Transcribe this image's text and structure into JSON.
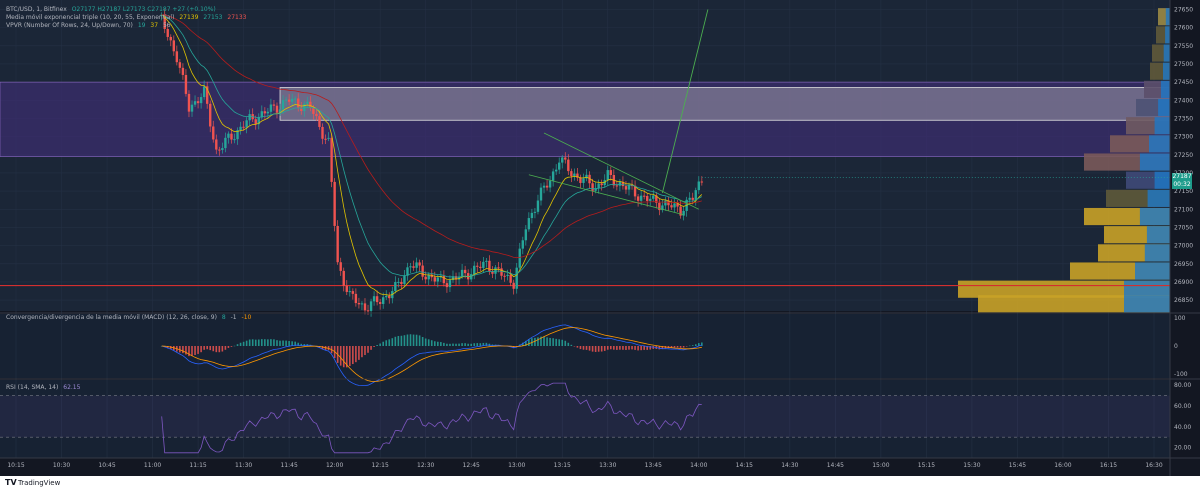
{
  "header": {
    "symbol_line": "BTC/USD, 1, Bitfinex",
    "ohlc": "O27177 H27187 L27173 C27187 +27 (+0.10%)",
    "ema_label": "Media móvil exponencial triple (10, 20, 55, Exponential)",
    "ema_values": [
      "27139",
      "27153",
      "27133"
    ],
    "vpvr_label": "VPVR (Number Of Rows, 24, Up/Down, 70)",
    "vpvr_values": [
      "19",
      "37",
      "56"
    ]
  },
  "price_tag": {
    "price": "27187",
    "countdown": "00:32"
  },
  "macd_label": "Convergencia/divergencia de la media móvil (MACD) (12, 26, close, 9)",
  "macd_values": [
    "8",
    "-1",
    "-10"
  ],
  "rsi_label": "RSI (14, SMA, 14)",
  "rsi_value": "62.15",
  "footer": {
    "brand": "TradingView",
    "logo": "TV"
  },
  "colors": {
    "background": "#131722",
    "up": "#26a69a",
    "down": "#ef5350",
    "zone": "#3b2e6e",
    "support_line": "#d32f2f",
    "ema_fast": "#e0c300",
    "ema_mid": "#26a69a",
    "ema_slow": "#b71c1c",
    "rsi": "#7e57c2",
    "trend_line": "#4caf50"
  },
  "chart_data": [
    {
      "type": "candlestick",
      "title": "BTC/USD, 1, Bitfinex",
      "x_ticks": [
        "10:15",
        "10:30",
        "10:45",
        "11:00",
        "11:15",
        "11:30",
        "11:45",
        "12:00",
        "12:15",
        "12:30",
        "12:45",
        "13:00",
        "13:15",
        "13:30",
        "13:45",
        "14:00",
        "14:15",
        "14:30",
        "14:45",
        "15:00",
        "15:15",
        "15:30",
        "15:45",
        "16:00",
        "16:15",
        "16:30"
      ],
      "y_ticks": [
        27650,
        27600,
        27550,
        27500,
        27450,
        27400,
        27350,
        27300,
        27250,
        27200,
        27150,
        27100,
        27050,
        27000,
        26950,
        26900,
        26850
      ],
      "ylim": [
        26820,
        27665
      ],
      "last_price": 27187,
      "support_price": 26890,
      "resistance_zone": [
        27245,
        27450
      ],
      "rectangle_zone": [
        27345,
        27435
      ],
      "close_path": [
        {
          "t": "11:03",
          "c": 27620
        },
        {
          "t": "11:08",
          "c": 27520
        },
        {
          "t": "11:12",
          "c": 27380
        },
        {
          "t": "11:17",
          "c": 27420
        },
        {
          "t": "11:21",
          "c": 27260
        },
        {
          "t": "11:26",
          "c": 27300
        },
        {
          "t": "11:31",
          "c": 27340
        },
        {
          "t": "11:38",
          "c": 27370
        },
        {
          "t": "11:45",
          "c": 27400
        },
        {
          "t": "11:52",
          "c": 27380
        },
        {
          "t": "11:58",
          "c": 27280
        },
        {
          "t": "12:01",
          "c": 26950
        },
        {
          "t": "12:05",
          "c": 26860
        },
        {
          "t": "12:10",
          "c": 26830
        },
        {
          "t": "12:15",
          "c": 26850
        },
        {
          "t": "12:20",
          "c": 26880
        },
        {
          "t": "12:25",
          "c": 26950
        },
        {
          "t": "12:30",
          "c": 26920
        },
        {
          "t": "12:35",
          "c": 26900
        },
        {
          "t": "12:40",
          "c": 26910
        },
        {
          "t": "12:45",
          "c": 26930
        },
        {
          "t": "12:50",
          "c": 26950
        },
        {
          "t": "12:55",
          "c": 26920
        },
        {
          "t": "12:59",
          "c": 26900
        },
        {
          "t": "13:03",
          "c": 27050
        },
        {
          "t": "13:07",
          "c": 27130
        },
        {
          "t": "13:11",
          "c": 27180
        },
        {
          "t": "13:14",
          "c": 27240
        },
        {
          "t": "13:18",
          "c": 27200
        },
        {
          "t": "13:22",
          "c": 27180
        },
        {
          "t": "13:26",
          "c": 27160
        },
        {
          "t": "13:30",
          "c": 27190
        },
        {
          "t": "13:34",
          "c": 27170
        },
        {
          "t": "13:38",
          "c": 27150
        },
        {
          "t": "13:42",
          "c": 27130
        },
        {
          "t": "13:46",
          "c": 27120
        },
        {
          "t": "13:50",
          "c": 27110
        },
        {
          "t": "13:54",
          "c": 27100
        },
        {
          "t": "13:58",
          "c": 27130
        },
        {
          "t": "14:01",
          "c": 27187
        }
      ]
    },
    {
      "type": "line",
      "title": "Convergencia/divergencia de la media móvil (MACD) (12, 26, close, 9)",
      "y_ticks": [
        100,
        0,
        -100
      ],
      "ylim": [
        -115,
        115
      ]
    },
    {
      "type": "line",
      "title": "RSI (14, SMA, 14)",
      "y_ticks": [
        80,
        60,
        40,
        20
      ],
      "ylim": [
        10,
        85
      ],
      "band": [
        30,
        70
      ],
      "last_value": 62.15
    }
  ]
}
